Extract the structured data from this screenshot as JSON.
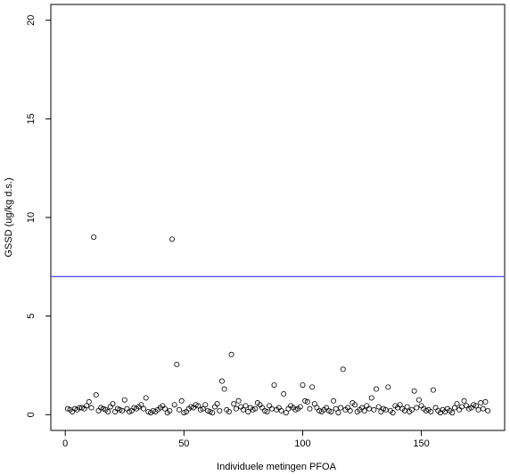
{
  "chart_data": {
    "type": "scatter",
    "x_label": "Individuele metingen PFOA",
    "y_label": "GSSD (ug/kg d.s.)",
    "x": [
      1,
      2,
      3,
      4,
      5,
      6,
      7,
      8,
      9,
      10,
      11,
      12,
      13,
      14,
      15,
      16,
      17,
      18,
      19,
      20,
      21,
      22,
      23,
      24,
      25,
      26,
      27,
      28,
      29,
      30,
      31,
      32,
      33,
      34,
      35,
      36,
      37,
      38,
      39,
      40,
      41,
      42,
      43,
      44,
      45,
      46,
      47,
      48,
      49,
      50,
      51,
      52,
      53,
      54,
      55,
      56,
      57,
      58,
      59,
      60,
      61,
      62,
      63,
      64,
      65,
      66,
      67,
      68,
      69,
      70,
      71,
      72,
      73,
      74,
      75,
      76,
      77,
      78,
      79,
      80,
      81,
      82,
      83,
      84,
      85,
      86,
      87,
      88,
      89,
      90,
      91,
      92,
      93,
      94,
      95,
      96,
      97,
      98,
      99,
      100,
      101,
      102,
      103,
      104,
      105,
      106,
      107,
      108,
      109,
      110,
      111,
      112,
      113,
      114,
      115,
      116,
      117,
      118,
      119,
      120,
      121,
      122,
      123,
      124,
      125,
      126,
      127,
      128,
      129,
      130,
      131,
      132,
      133,
      134,
      135,
      136,
      137,
      138,
      139,
      140,
      141,
      142,
      143,
      144,
      145,
      146,
      147,
      148,
      149,
      150,
      151,
      152,
      153,
      154,
      155,
      156,
      157,
      158,
      159,
      160,
      161,
      162,
      163,
      164,
      165,
      166,
      167,
      168,
      169,
      170,
      171,
      172,
      173,
      174,
      175,
      176,
      177,
      178
    ],
    "values": [
      0.3,
      0.25,
      0.15,
      0.3,
      0.25,
      0.35,
      0.35,
      0.3,
      0.45,
      0.65,
      0.35,
      9.0,
      1.0,
      0.2,
      0.35,
      0.3,
      0.25,
      0.15,
      0.4,
      0.55,
      0.15,
      0.3,
      0.25,
      0.2,
      0.75,
      0.3,
      0.15,
      0.2,
      0.35,
      0.3,
      0.4,
      0.5,
      0.3,
      0.85,
      0.15,
      0.1,
      0.2,
      0.15,
      0.25,
      0.35,
      0.45,
      0.3,
      0.1,
      0.2,
      8.9,
      0.5,
      2.55,
      0.25,
      0.7,
      0.1,
      0.15,
      0.3,
      0.4,
      0.35,
      0.5,
      0.45,
      0.25,
      0.3,
      0.5,
      0.2,
      0.15,
      0.1,
      0.4,
      0.55,
      0.2,
      1.7,
      1.3,
      0.25,
      0.15,
      3.05,
      0.55,
      0.3,
      0.7,
      0.4,
      0.25,
      0.45,
      0.15,
      0.35,
      0.25,
      0.3,
      0.6,
      0.5,
      0.35,
      0.2,
      0.15,
      0.45,
      0.3,
      1.5,
      0.25,
      0.35,
      0.2,
      1.05,
      0.1,
      0.3,
      0.45,
      0.35,
      0.25,
      0.3,
      0.4,
      1.5,
      0.7,
      0.65,
      0.3,
      1.4,
      0.55,
      0.35,
      0.2,
      0.15,
      0.25,
      0.35,
      0.2,
      0.15,
      0.7,
      0.3,
      0.1,
      0.35,
      2.3,
      0.25,
      0.35,
      0.2,
      0.6,
      0.5,
      0.15,
      0.25,
      0.35,
      0.2,
      0.45,
      0.3,
      0.85,
      0.25,
      1.3,
      0.4,
      0.15,
      0.3,
      0.25,
      1.4,
      0.2,
      0.1,
      0.45,
      0.35,
      0.5,
      0.3,
      0.2,
      0.4,
      0.15,
      0.25,
      1.2,
      0.35,
      0.75,
      0.45,
      0.3,
      0.2,
      0.25,
      0.15,
      1.25,
      0.35,
      0.2,
      0.1,
      0.25,
      0.15,
      0.3,
      0.2,
      0.1,
      0.35,
      0.55,
      0.25,
      0.4,
      0.7,
      0.45,
      0.3,
      0.35,
      0.5,
      0.45,
      0.25,
      0.6,
      0.3,
      0.65,
      0.2
    ],
    "color": "#000000",
    "hline": 7,
    "hline_color": "#4a4aff",
    "xlim": [
      -6.08,
      185.08
    ],
    "xticks": [
      0,
      50,
      100,
      150
    ],
    "ylim": [
      -0.8,
      20.8
    ],
    "yticks": [
      0,
      5,
      10,
      15,
      20
    ]
  }
}
